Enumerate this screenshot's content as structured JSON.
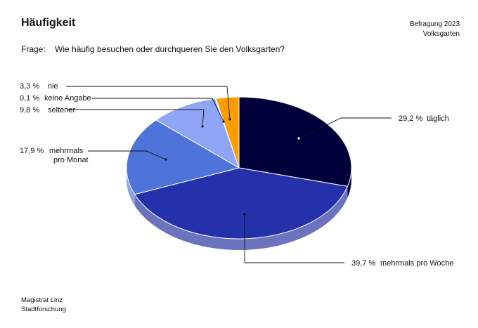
{
  "header": {
    "title": "Häufigkeit",
    "survey_line1": "Befragung 2023",
    "survey_line2": "Volksgarten"
  },
  "question": {
    "label": "Frage:",
    "text": "Wie häufig besuchen oder durchqueren Sie den Volksgarten?"
  },
  "footer": {
    "line1": "Magistrat Linz",
    "line2": "Stadtforschung"
  },
  "chart_data": {
    "type": "pie",
    "title": "Häufigkeit",
    "style": "3d-pie",
    "unit": "%",
    "slices": [
      {
        "label": "täglich",
        "value": 29.2,
        "value_label": "29,2 %",
        "color": "#02003a",
        "side_color": "#02003a"
      },
      {
        "label": "mehrmals pro Woche",
        "value": 39.7,
        "value_label": "39,7 %",
        "color": "#2431aa",
        "side_color": "#6b73bf"
      },
      {
        "label": "mehrmals pro Monat",
        "label_lines": [
          "mehrmals",
          "pro Monat"
        ],
        "value": 17.9,
        "value_label": "17,9 %",
        "color": "#4e74d9",
        "side_color": "#8aa2e6"
      },
      {
        "label": "seltener",
        "value": 9.8,
        "value_label": "9,8 %",
        "color": "#8fa6f7",
        "side_color": "#b8c6fa"
      },
      {
        "label": "keine Angabe",
        "value": 0.1,
        "value_label": "0,1 %",
        "color": "#000000",
        "side_color": "#000000"
      },
      {
        "label": "nie",
        "value": 3.3,
        "value_label": "3,3 %",
        "color": "#ff9c00",
        "side_color": "#ffc266"
      }
    ]
  }
}
